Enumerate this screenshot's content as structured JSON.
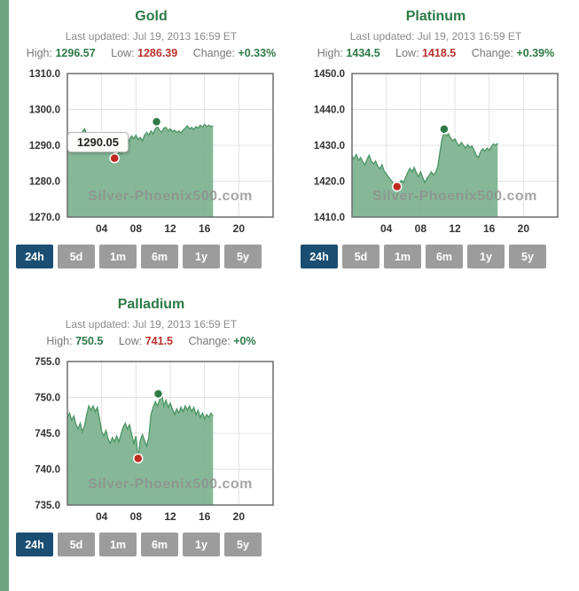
{
  "page": {
    "watermark": "Silver-Phoenix500.com"
  },
  "labels": {
    "high": "High:",
    "low": "Low:",
    "change": "Change:"
  },
  "range_buttons": {
    "labels": [
      "24h",
      "5d",
      "1m",
      "6m",
      "1y",
      "5y"
    ],
    "active": "24h"
  },
  "axis": {
    "x_max": 24,
    "x_ticks": [
      "04",
      "08",
      "12",
      "16",
      "20"
    ],
    "x_unit": "hour of day (ET)"
  },
  "colors": {
    "stripe_green": "#6da57f",
    "title_green": "#2d7a46",
    "value_green": "#2d7a46",
    "value_red": "#b8312a",
    "area_fill": "#7cb28e",
    "area_line": "#4f9767",
    "dot_high": "#2d7a46",
    "dot_low": "#c02a1f",
    "button_active": "#1a4e72",
    "button_inactive": "#9c9c9c"
  },
  "chart_data": [
    {
      "type": "area",
      "title": "Gold",
      "last_updated": "Last updated: Jul 19, 2013 16:59 ET",
      "high": "1296.57",
      "low": "1286.39",
      "change": "+0.33%",
      "y_range": [
        1270,
        1310
      ],
      "y_ticks": [
        1310,
        1300,
        1290,
        1280,
        1270
      ],
      "x_start": 0,
      "x_step": 0.25,
      "values": [
        1292.8,
        1293.4,
        1292.6,
        1293.0,
        1292.2,
        1292.8,
        1292.0,
        1293.8,
        1294.6,
        1293.2,
        1292.4,
        1292.8,
        1292.2,
        1292.6,
        1292.0,
        1292.4,
        1291.8,
        1292.2,
        1291.4,
        1290.8,
        1289.6,
        1288.4,
        1286.4,
        1287.2,
        1288.0,
        1287.6,
        1288.4,
        1289.0,
        1290.4,
        1291.6,
        1292.6,
        1291.8,
        1292.8,
        1291.6,
        1292.2,
        1291.2,
        1292.8,
        1293.6,
        1292.8,
        1294.0,
        1293.2,
        1294.6,
        1295.2,
        1294.2,
        1293.6,
        1294.8,
        1295.0,
        1294.0,
        1294.6,
        1293.8,
        1294.2,
        1293.6,
        1294.0,
        1293.4,
        1294.2,
        1294.8,
        1295.4,
        1294.6,
        1295.0,
        1294.4,
        1295.2,
        1294.8,
        1295.6,
        1295.0,
        1295.8,
        1295.2,
        1295.6,
        1295.2,
        1295.4
      ],
      "low_marker": {
        "x": 5.5,
        "value": 1286.39
      },
      "high_marker": {
        "x": 10.4,
        "value": 1296.57
      },
      "tooltip": {
        "text": "1290.05"
      }
    },
    {
      "type": "area",
      "title": "Platinum",
      "last_updated": "Last updated: Jul 19, 2013 16:59 ET",
      "high": "1434.5",
      "low": "1418.5",
      "change": "+0.39%",
      "y_range": [
        1410,
        1450
      ],
      "y_ticks": [
        1450,
        1440,
        1430,
        1420,
        1410
      ],
      "x_start": 0,
      "x_step": 0.25,
      "values": [
        1427.0,
        1426.2,
        1427.4,
        1425.8,
        1426.6,
        1425.4,
        1424.6,
        1426.0,
        1427.2,
        1425.6,
        1424.8,
        1425.6,
        1424.2,
        1423.4,
        1424.6,
        1422.8,
        1422.0,
        1421.2,
        1420.4,
        1419.6,
        1419.0,
        1418.5,
        1419.4,
        1420.2,
        1419.6,
        1421.0,
        1422.4,
        1423.6,
        1422.6,
        1423.8,
        1422.4,
        1421.2,
        1422.6,
        1421.0,
        1419.6,
        1420.8,
        1421.6,
        1422.6,
        1421.8,
        1422.4,
        1424.0,
        1428.0,
        1431.6,
        1433.8,
        1432.6,
        1433.2,
        1432.0,
        1431.2,
        1431.8,
        1430.6,
        1429.8,
        1430.8,
        1430.0,
        1429.2,
        1430.2,
        1429.4,
        1429.8,
        1428.6,
        1427.2,
        1426.6,
        1428.2,
        1429.0,
        1428.4,
        1429.2,
        1428.6,
        1429.6,
        1430.4,
        1430.0,
        1430.6
      ],
      "low_marker": {
        "x": 5.25,
        "value": 1418.5
      },
      "high_marker": {
        "x": 10.75,
        "value": 1434.5
      }
    },
    {
      "type": "area",
      "title": "Palladium",
      "last_updated": "Last updated: Jul 19, 2013 16:59 ET",
      "high": "750.5",
      "low": "741.5",
      "change": "+0%",
      "y_range": [
        735,
        755
      ],
      "y_ticks": [
        755,
        750,
        745,
        740,
        735
      ],
      "x_start": 0,
      "x_step": 0.25,
      "values": [
        747.2,
        747.8,
        746.8,
        747.4,
        746.2,
        745.6,
        746.4,
        745.2,
        746.0,
        747.6,
        748.8,
        748.2,
        748.8,
        748.0,
        748.6,
        747.0,
        745.2,
        744.6,
        745.4,
        744.2,
        743.6,
        744.4,
        743.8,
        744.6,
        743.8,
        744.8,
        745.8,
        746.4,
        745.6,
        746.2,
        744.8,
        743.6,
        744.6,
        741.5,
        744.0,
        744.8,
        744.0,
        743.2,
        744.4,
        747.6,
        748.6,
        749.4,
        748.8,
        749.6,
        750.6,
        748.8,
        749.6,
        748.6,
        749.2,
        748.4,
        747.6,
        748.4,
        747.8,
        748.6,
        748.0,
        748.8,
        748.2,
        748.8,
        748.0,
        748.6,
        747.6,
        748.2,
        747.2,
        747.8,
        747.0,
        747.6,
        747.2,
        747.8,
        747.4
      ],
      "low_marker": {
        "x": 8.25,
        "value": 741.5
      },
      "high_marker": {
        "x": 10.6,
        "value": 750.5
      }
    }
  ]
}
